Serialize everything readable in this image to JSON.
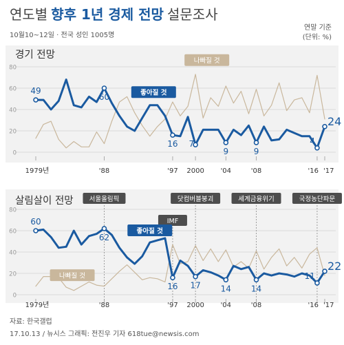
{
  "header": {
    "title_part1": "연도별",
    "title_part2": "향후 1년 경제 전망",
    "title_part3": "설문조사",
    "subtitle": "10월10~12일 · 전국 성인 1005명",
    "unit_line1": "연말 기준",
    "unit_line2": "(단위: %)"
  },
  "footer": {
    "source": "자료: 한국갤럽",
    "credit": "17.10.13 / 뉴시스 그래픽: 전진우 기자  618tue@newsis.com"
  },
  "colors": {
    "good": "#1a5aa0",
    "bad": "#c9b79c",
    "panel_bg": "#f2f2f2",
    "grid": "#d2d2d2"
  },
  "chart_data": [
    {
      "type": "line",
      "title": "경기 전망",
      "x": [
        1979,
        1980,
        1981,
        1982,
        1983,
        1984,
        1985,
        1986,
        1987,
        1988,
        1989,
        1990,
        1991,
        1992,
        1993,
        1994,
        1995,
        1996,
        1997,
        1998,
        1999,
        2000,
        2001,
        2002,
        2003,
        2004,
        2005,
        2006,
        2007,
        2008,
        2009,
        2010,
        2011,
        2012,
        2013,
        2014,
        2015,
        2016,
        2017
      ],
      "x_tick_labels": [
        {
          "x": 1979,
          "label": "1979년"
        },
        {
          "x": 1988,
          "label": "'88"
        },
        {
          "x": 1997,
          "label": "'97"
        },
        {
          "x": 2000,
          "label": "2000"
        },
        {
          "x": 2004,
          "label": "'04"
        },
        {
          "x": 2008,
          "label": "'08"
        },
        {
          "x": 2016,
          "label": "'16"
        },
        {
          "x": 2017,
          "label": "'17"
        }
      ],
      "y_ticks": [
        0,
        20,
        40,
        60,
        80
      ],
      "ylim": [
        0,
        80
      ],
      "series": [
        {
          "name": "좋아질 것",
          "color": "#1a5aa0",
          "values": [
            49,
            49,
            40,
            48,
            68,
            44,
            42,
            52,
            47,
            60,
            46,
            34,
            24,
            20,
            32,
            44,
            44,
            34,
            16,
            15,
            33,
            7,
            21,
            21,
            21,
            9,
            21,
            16,
            25,
            9,
            24,
            11,
            12,
            21,
            18,
            15,
            15,
            4,
            24
          ]
        },
        {
          "name": "나빠질 것",
          "color": "#c9b79c",
          "values": [
            13,
            26,
            29,
            12,
            4,
            10,
            5,
            5,
            19,
            8,
            29,
            47,
            52,
            37,
            25,
            15,
            24,
            31,
            47,
            34,
            43,
            73,
            32,
            51,
            43,
            62,
            46,
            57,
            36,
            59,
            34,
            44,
            65,
            39,
            49,
            51,
            37,
            72,
            31
          ]
        }
      ],
      "point_labels": [
        {
          "series": "좋아질 것",
          "x": 1979,
          "value": "49"
        },
        {
          "series": "좋아질 것",
          "x": 1988,
          "value": "60"
        },
        {
          "series": "좋아질 것",
          "x": 1997,
          "value": "16"
        },
        {
          "series": "좋아질 것",
          "x": 2000,
          "value": "7"
        },
        {
          "series": "좋아질 것",
          "x": 2004,
          "value": "9"
        },
        {
          "series": "좋아질 것",
          "x": 2008,
          "value": "9"
        },
        {
          "series": "좋아질 것",
          "x": 2016,
          "value": "4"
        },
        {
          "series": "좋아질 것",
          "x": 2017,
          "value": "24"
        }
      ],
      "series_callouts": [
        {
          "series": "좋아질 것",
          "label": "좋아질 것",
          "x": 1994.5,
          "y": 56,
          "style": "blue"
        },
        {
          "series": "나빠질 것",
          "label": "나빠질 것",
          "x": 2001.5,
          "y": 86,
          "style": "tan"
        }
      ],
      "event_annotations": []
    },
    {
      "type": "line",
      "title": "살림살이 전망",
      "x": [
        1979,
        1980,
        1981,
        1982,
        1983,
        1984,
        1985,
        1986,
        1987,
        1988,
        1989,
        1990,
        1991,
        1992,
        1993,
        1994,
        1995,
        1996,
        1997,
        1998,
        1999,
        2000,
        2001,
        2002,
        2003,
        2004,
        2005,
        2006,
        2007,
        2008,
        2009,
        2010,
        2011,
        2012,
        2013,
        2014,
        2015,
        2016,
        2017
      ],
      "x_tick_labels": [
        {
          "x": 1979,
          "label": "1979년"
        },
        {
          "x": 1988,
          "label": "'88"
        },
        {
          "x": 1997,
          "label": "'97"
        },
        {
          "x": 2000,
          "label": "2000"
        },
        {
          "x": 2004,
          "label": "'04"
        },
        {
          "x": 2008,
          "label": "'08"
        },
        {
          "x": 2016,
          "label": "'16"
        },
        {
          "x": 2017,
          "label": "'17"
        }
      ],
      "y_ticks": [
        0,
        20,
        40,
        60,
        80
      ],
      "ylim": [
        0,
        80
      ],
      "series": [
        {
          "name": "좋아질 것",
          "color": "#1a5aa0",
          "values": [
            60,
            61,
            54,
            44,
            45,
            60,
            47,
            55,
            57,
            62,
            56,
            44,
            35,
            29,
            36,
            49,
            51,
            53,
            16,
            32,
            27,
            17,
            23,
            21,
            18,
            14,
            27,
            24,
            26,
            14,
            20,
            18,
            20,
            19,
            17,
            20,
            18,
            11,
            22
          ]
        },
        {
          "name": "나빠질 것",
          "color": "#c9b79c",
          "values": [
            8,
            17,
            17,
            16,
            7,
            4,
            8,
            12,
            9,
            8,
            15,
            22,
            28,
            21,
            14,
            16,
            15,
            12,
            47,
            29,
            31,
            46,
            32,
            43,
            31,
            42,
            26,
            31,
            25,
            41,
            24,
            35,
            43,
            27,
            35,
            25,
            38,
            44,
            18
          ]
        }
      ],
      "point_labels": [
        {
          "series": "좋아질 것",
          "x": 1979,
          "value": "60"
        },
        {
          "series": "좋아질 것",
          "x": 1988,
          "value": "62"
        },
        {
          "series": "좋아질 것",
          "x": 1997,
          "value": "16"
        },
        {
          "series": "좋아질 것",
          "x": 2000,
          "value": "17"
        },
        {
          "series": "좋아질 것",
          "x": 2004,
          "value": "14"
        },
        {
          "series": "좋아질 것",
          "x": 2008,
          "value": "14"
        },
        {
          "series": "좋아질 것",
          "x": 2016,
          "value": "11"
        },
        {
          "series": "좋아질 것",
          "x": 2017,
          "value": "22"
        }
      ],
      "series_callouts": [
        {
          "series": "좋아질 것",
          "label": "좋아질 것",
          "x": 1994,
          "y": 60,
          "style": "blue"
        },
        {
          "series": "나빠질 것",
          "label": "나빠질 것",
          "x": 1983.8,
          "y": 18,
          "style": "tan"
        }
      ],
      "event_annotations": [
        {
          "label": "서울올림픽",
          "x": 1988
        },
        {
          "label": "IMF",
          "x": 1997
        },
        {
          "label": "닷컴버블붕괴",
          "x": 2000
        },
        {
          "label": "세계금융위기",
          "x": 2008
        },
        {
          "label": "국정농단파문",
          "x": 2016
        }
      ]
    }
  ]
}
